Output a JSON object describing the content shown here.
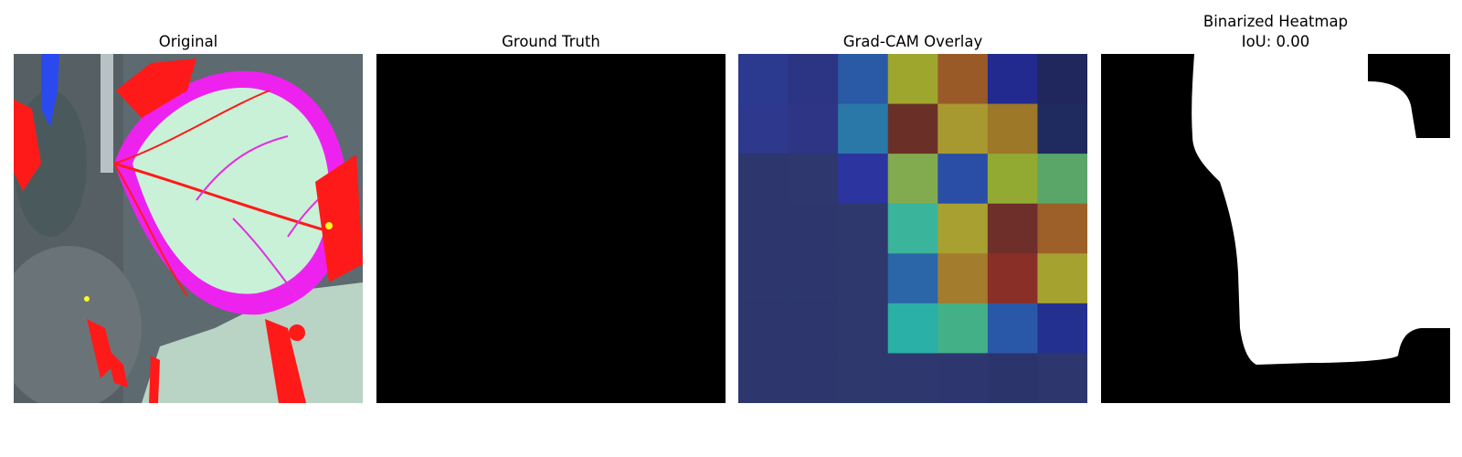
{
  "panels": {
    "original": {
      "title": "Original"
    },
    "ground_truth": {
      "title": "Ground Truth"
    },
    "gradcam": {
      "title": "Grad-CAM Overlay",
      "grid": [
        [
          "#2b3a8e",
          "#2c3484",
          "#2a5aa6",
          "#9ea62e",
          "#9a5a28",
          "#222a90",
          "#1f275c"
        ],
        [
          "#2e388c",
          "#2d3584",
          "#2a78a8",
          "#6a3028",
          "#a79830",
          "#9c7828",
          "#1f2a5e"
        ],
        [
          "#2d376e",
          "#2e386e",
          "#2c34a0",
          "#82aa4e",
          "#2a4ea6",
          "#92aa32",
          "#5aa668"
        ],
        [
          "#2d376e",
          "#2d376e",
          "#2e386c",
          "#3ab49a",
          "#a8a030",
          "#6e2e2a",
          "#9c6028"
        ],
        [
          "#2d376e",
          "#2d376e",
          "#2e386c",
          "#2a66a8",
          "#a47c2e",
          "#8a2e28",
          "#a6a230"
        ],
        [
          "#2d376e",
          "#2d376e",
          "#2e386c",
          "#2ab0a6",
          "#44b088",
          "#2a58a8",
          "#243090"
        ],
        [
          "#2d376e",
          "#2d376e",
          "#2e386c",
          "#2e386e",
          "#2d366e",
          "#2c346c",
          "#2d376e"
        ]
      ]
    },
    "binarized": {
      "title_line1": "Binarized Heatmap",
      "title_line2": "IoU: 0.00"
    }
  }
}
